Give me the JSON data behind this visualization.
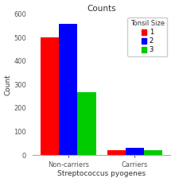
{
  "title": "Counts",
  "xlabel": "Streptococcus pyogenes",
  "ylabel": "Count",
  "legend_title": "Tonsil Size",
  "categories": [
    "Non-carriers",
    "Carriers"
  ],
  "series": [
    {
      "label": "1",
      "color": "#ff0000",
      "values": [
        500,
        20
      ]
    },
    {
      "label": "2",
      "color": "#0000ff",
      "values": [
        560,
        32
      ]
    },
    {
      "label": "3",
      "color": "#00cc00",
      "values": [
        268,
        22
      ]
    }
  ],
  "ylim": [
    0,
    600
  ],
  "yticks": [
    0,
    100,
    200,
    300,
    400,
    500,
    600
  ],
  "background_color": "#ffffff",
  "bar_width": 0.18,
  "group_positions": [
    0.35,
    1.0
  ],
  "title_fontsize": 7.5,
  "axis_fontsize": 6.5,
  "tick_fontsize": 6,
  "legend_fontsize": 6
}
